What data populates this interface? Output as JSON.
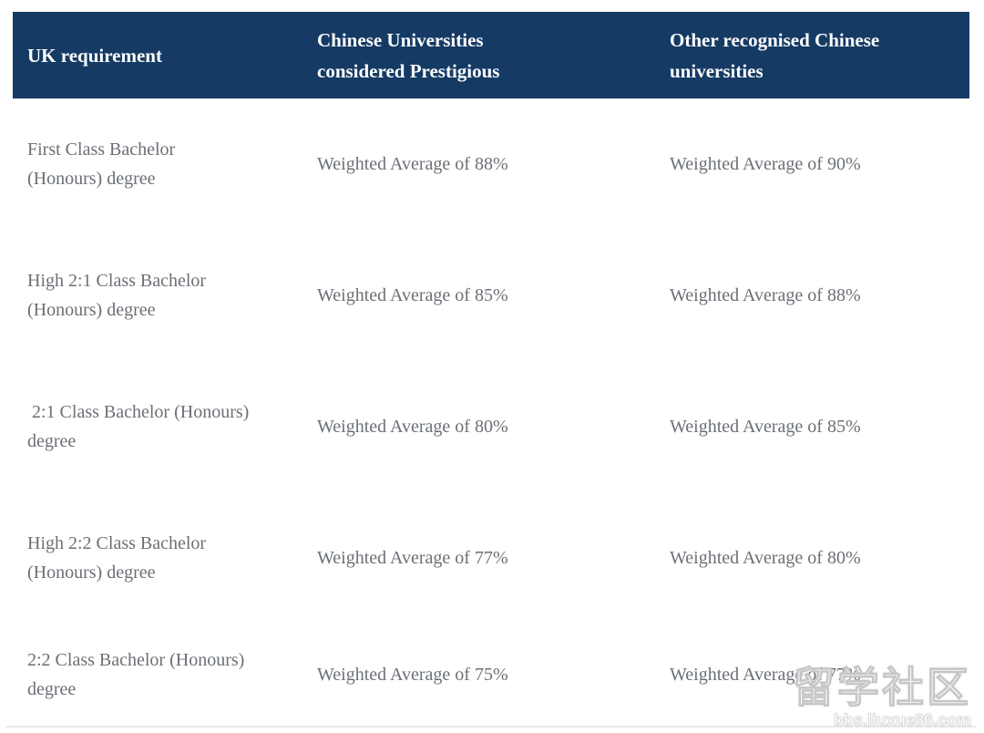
{
  "table": {
    "columns": [
      {
        "label": "UK requirement"
      },
      {
        "label": "Chinese Universities\nconsidered Prestigious"
      },
      {
        "label": "Other recognised Chinese\nuniversities"
      }
    ],
    "rows": [
      {
        "requirement": "First Class Bachelor\n(Honours) degree",
        "prestigious": "Weighted Average of 88%",
        "other": "Weighted Average of 90%"
      },
      {
        "requirement": "High 2:1 Class Bachelor\n(Honours) degree",
        "prestigious": "Weighted Average of 85%",
        "other": "Weighted Average of 88%"
      },
      {
        "requirement": " 2:1 Class Bachelor (Honours)\ndegree",
        "prestigious": "Weighted Average of 80%",
        "other": "Weighted Average of 85%"
      },
      {
        "requirement": "High 2:2 Class Bachelor\n(Honours) degree",
        "prestigious": "Weighted Average of 77%",
        "other": "Weighted Average of 80%"
      },
      {
        "requirement": "2:2 Class Bachelor (Honours)\ndegree",
        "prestigious": "Weighted Average of 75%",
        "other": "Weighted Average of 77%"
      }
    ]
  },
  "watermark": {
    "text": "留学社区",
    "url": "bbs.liuxue86.com"
  },
  "colors": {
    "header_bg": "#153a64",
    "header_text": "#fdfdfe",
    "body_text": "#6b7076",
    "divider": "#e9ebec"
  },
  "chart_data": {
    "type": "table",
    "title": "",
    "columns": [
      "UK requirement",
      "Chinese Universities considered Prestigious",
      "Other recognised Chinese universities"
    ],
    "rows": [
      [
        "First Class Bachelor (Honours) degree",
        "Weighted Average of 88%",
        "Weighted Average of 90%"
      ],
      [
        "High 2:1 Class Bachelor (Honours) degree",
        "Weighted Average of 85%",
        "Weighted Average of 88%"
      ],
      [
        "2:1 Class Bachelor (Honours) degree",
        "Weighted Average of 80%",
        "Weighted Average of 85%"
      ],
      [
        "High 2:2 Class Bachelor (Honours) degree",
        "Weighted Average of 77%",
        "Weighted Average of 80%"
      ],
      [
        "2:2 Class Bachelor (Honours) degree",
        "Weighted Average of 75%",
        "Weighted Average of 77%"
      ]
    ]
  }
}
